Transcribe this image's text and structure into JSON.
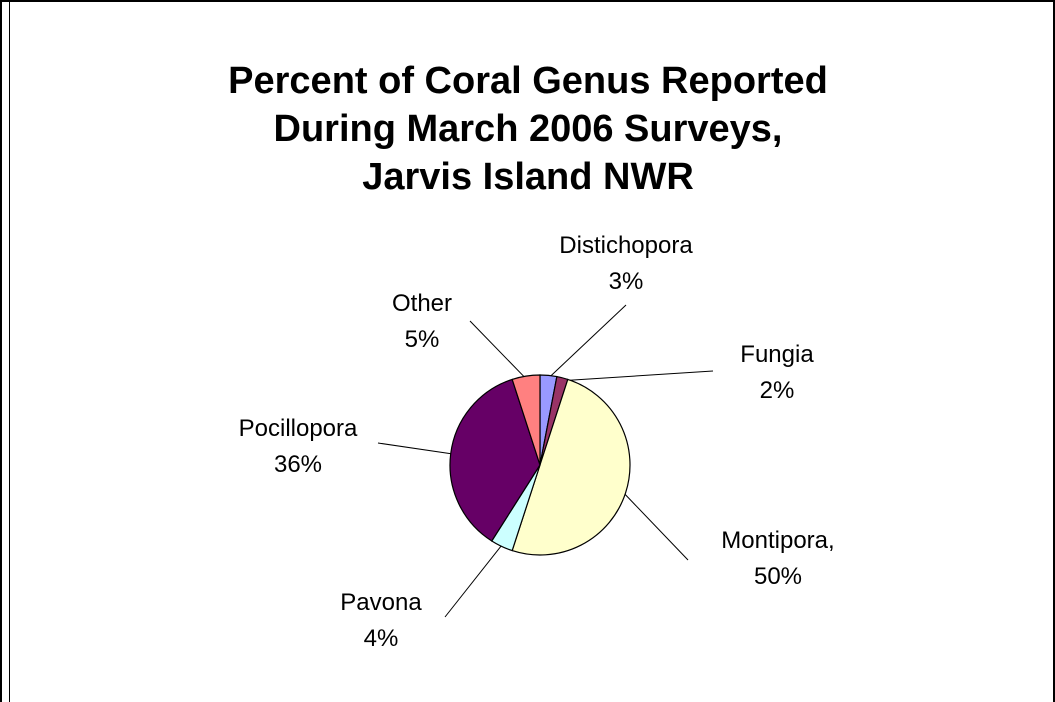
{
  "chart_data": {
    "type": "pie",
    "title_lines": [
      "Percent of Coral Genus Reported",
      "During March 2006 Surveys,",
      "Jarvis Island NWR"
    ],
    "slices": [
      {
        "category": "Distichopora",
        "value": 3,
        "name_text": "Distichopora",
        "pct_text": "3%",
        "color": "#9999ff"
      },
      {
        "category": "Fungia",
        "value": 2,
        "name_text": "Fungia",
        "pct_text": "2%",
        "color": "#993366"
      },
      {
        "category": "Montipora",
        "value": 50,
        "name_text": "Montipora,",
        "pct_text": "50%",
        "color": "#ffffcc"
      },
      {
        "category": "Pavona",
        "value": 4,
        "name_text": "Pavona",
        "pct_text": "4%",
        "color": "#ccffff"
      },
      {
        "category": "Pocillopora",
        "value": 36,
        "name_text": "Pocillopora",
        "pct_text": "36%",
        "color": "#660066"
      },
      {
        "category": "Other",
        "value": 5,
        "name_text": "Other",
        "pct_text": "5%",
        "color": "#ff8080"
      }
    ],
    "start_angle": "12 o'clock",
    "direction": "clockwise",
    "legend": "none",
    "data_labels": "outside-with-leader-lines"
  }
}
